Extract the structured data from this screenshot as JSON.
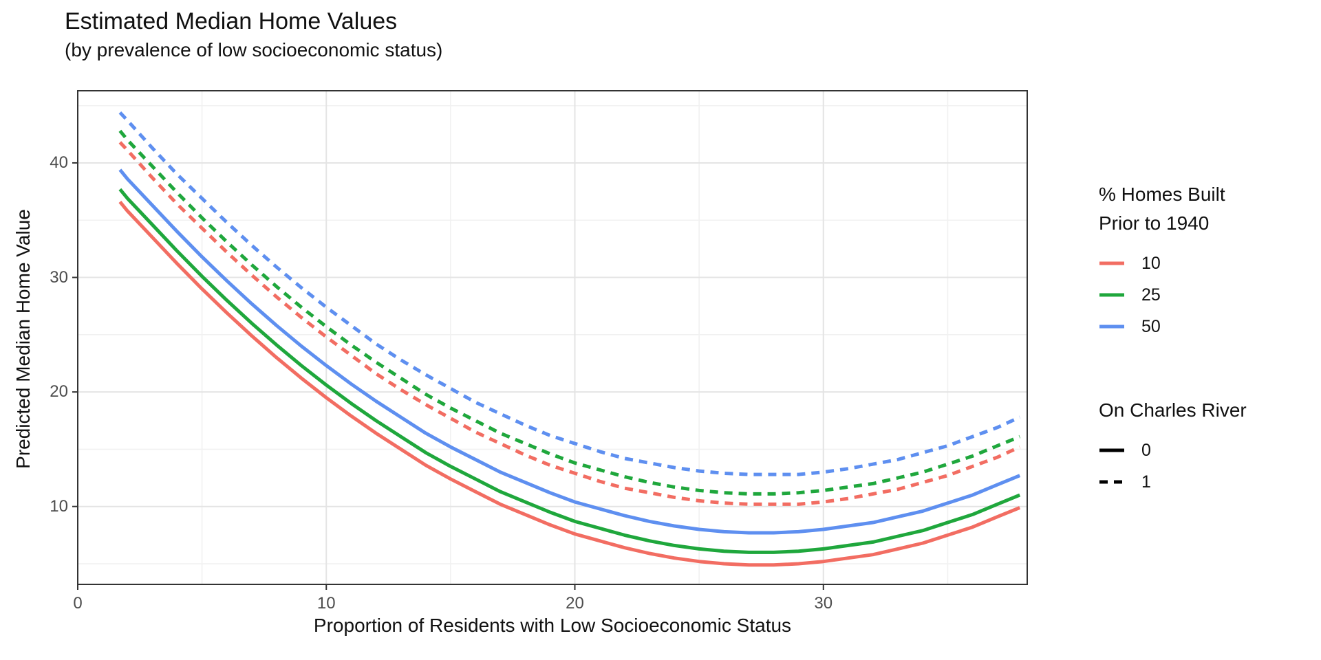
{
  "title": "Estimated Median Home Values",
  "subtitle": "(by prevalence of low socioeconomic status)",
  "palette": {
    "red": "#F26D62",
    "green": "#1FA73C",
    "blue": "#5E8FF0",
    "grid_major": "#E4E4E4",
    "grid_minor": "#F1F1F1",
    "panel_border": "#333333",
    "tick_mark": "#333333",
    "tick_text": "#4d4d4d"
  },
  "chart_data": {
    "type": "line",
    "title": "Estimated Median Home Values",
    "subtitle": "(by prevalence of low socioeconomic status)",
    "xlabel": "Proportion of Residents with Low Socioeconomic Status",
    "ylabel": "Predicted Median Home Value",
    "xlim": [
      0,
      38.2
    ],
    "ylim": [
      3.2,
      46.3
    ],
    "x_ticks": [
      "0",
      "10",
      "20",
      "30"
    ],
    "x_tick_values": [
      0,
      10,
      20,
      30
    ],
    "y_ticks": [
      "10",
      "20",
      "30",
      "40"
    ],
    "y_tick_values": [
      10,
      20,
      30,
      40
    ],
    "x_minor": [
      5,
      15,
      25,
      35
    ],
    "y_minor": [
      5,
      15,
      25,
      35,
      45
    ],
    "grid": true,
    "legend_position": "right",
    "x": [
      1.7,
      2,
      3,
      4,
      5,
      6,
      7,
      8,
      9,
      10,
      11,
      12,
      13,
      14,
      15,
      16,
      17,
      18,
      19,
      20,
      21,
      22,
      23,
      24,
      25,
      26,
      27,
      28,
      29,
      30,
      31,
      32,
      33,
      34,
      35,
      36,
      37,
      37.9
    ],
    "series": [
      {
        "name": "age10-chas0",
        "pct_homes_built_prior_1940": "10",
        "on_charles_river": "0",
        "color": "#F26D62",
        "dashed": false,
        "values": [
          36.6,
          35.8,
          33.5,
          31.2,
          29.0,
          26.9,
          24.9,
          23.0,
          21.2,
          19.5,
          17.9,
          16.4,
          15.0,
          13.6,
          12.4,
          11.3,
          10.2,
          9.3,
          8.4,
          7.6,
          7.0,
          6.4,
          5.9,
          5.5,
          5.2,
          5.0,
          4.9,
          4.9,
          5.0,
          5.2,
          5.5,
          5.8,
          6.3,
          6.8,
          7.5,
          8.2,
          9.1,
          9.9
        ]
      },
      {
        "name": "age25-chas0",
        "pct_homes_built_prior_1940": "25",
        "on_charles_river": "0",
        "color": "#1FA73C",
        "dashed": false,
        "values": [
          37.7,
          36.9,
          34.6,
          32.3,
          30.1,
          28.0,
          26.0,
          24.1,
          22.3,
          20.6,
          19.0,
          17.5,
          16.1,
          14.7,
          13.5,
          12.4,
          11.3,
          10.4,
          9.5,
          8.7,
          8.1,
          7.5,
          7.0,
          6.6,
          6.3,
          6.1,
          6.0,
          6.0,
          6.1,
          6.3,
          6.6,
          6.9,
          7.4,
          7.9,
          8.6,
          9.3,
          10.2,
          11.0
        ]
      },
      {
        "name": "age50-chas0",
        "pct_homes_built_prior_1940": "50",
        "on_charles_river": "0",
        "color": "#5E8FF0",
        "dashed": false,
        "values": [
          39.4,
          38.6,
          36.3,
          34.0,
          31.8,
          29.7,
          27.7,
          25.8,
          24.0,
          22.3,
          20.7,
          19.2,
          17.8,
          16.4,
          15.2,
          14.1,
          13.0,
          12.1,
          11.2,
          10.4,
          9.8,
          9.2,
          8.7,
          8.3,
          8.0,
          7.8,
          7.7,
          7.7,
          7.8,
          8.0,
          8.3,
          8.6,
          9.1,
          9.6,
          10.3,
          11.0,
          11.9,
          12.7
        ]
      },
      {
        "name": "age10-chas1",
        "pct_homes_built_prior_1940": "10",
        "on_charles_river": "1",
        "color": "#F26D62",
        "dashed": true,
        "values": [
          41.8,
          41.1,
          38.7,
          36.4,
          34.3,
          32.2,
          30.2,
          28.3,
          26.5,
          24.8,
          23.2,
          21.6,
          20.2,
          18.9,
          17.7,
          16.5,
          15.5,
          14.5,
          13.6,
          12.9,
          12.2,
          11.6,
          11.2,
          10.8,
          10.5,
          10.3,
          10.2,
          10.2,
          10.2,
          10.4,
          10.7,
          11.1,
          11.5,
          12.1,
          12.7,
          13.5,
          14.3,
          15.2
        ]
      },
      {
        "name": "age25-chas1",
        "pct_homes_built_prior_1940": "25",
        "on_charles_river": "1",
        "color": "#1FA73C",
        "dashed": true,
        "values": [
          42.8,
          42.0,
          39.7,
          37.4,
          35.2,
          33.1,
          31.1,
          29.2,
          27.4,
          25.7,
          24.1,
          22.6,
          21.2,
          19.8,
          18.6,
          17.5,
          16.4,
          15.5,
          14.6,
          13.8,
          13.2,
          12.6,
          12.1,
          11.7,
          11.4,
          11.2,
          11.1,
          11.1,
          11.2,
          11.4,
          11.7,
          12.0,
          12.5,
          13.0,
          13.7,
          14.4,
          15.3,
          16.1
        ]
      },
      {
        "name": "age50-chas1",
        "pct_homes_built_prior_1940": "50",
        "on_charles_river": "1",
        "color": "#5E8FF0",
        "dashed": true,
        "values": [
          44.4,
          43.7,
          41.3,
          39.0,
          36.9,
          34.8,
          32.8,
          30.9,
          29.1,
          27.4,
          25.8,
          24.2,
          22.8,
          21.5,
          20.3,
          19.1,
          18.1,
          17.1,
          16.2,
          15.5,
          14.8,
          14.2,
          13.8,
          13.4,
          13.1,
          12.9,
          12.8,
          12.8,
          12.8,
          13.0,
          13.3,
          13.7,
          14.1,
          14.7,
          15.3,
          16.1,
          16.9,
          17.8
        ]
      }
    ],
    "legends": [
      {
        "title": "% Homes Built\nPrior to 1940",
        "items": [
          {
            "label": "10",
            "color": "#F26D62",
            "dashed": false
          },
          {
            "label": "25",
            "color": "#1FA73C",
            "dashed": false
          },
          {
            "label": "50",
            "color": "#5E8FF0",
            "dashed": false
          }
        ]
      },
      {
        "title": "On Charles River",
        "items": [
          {
            "label": "0",
            "color": "#000000",
            "dashed": false
          },
          {
            "label": "1",
            "color": "#000000",
            "dashed": true
          }
        ]
      }
    ]
  }
}
